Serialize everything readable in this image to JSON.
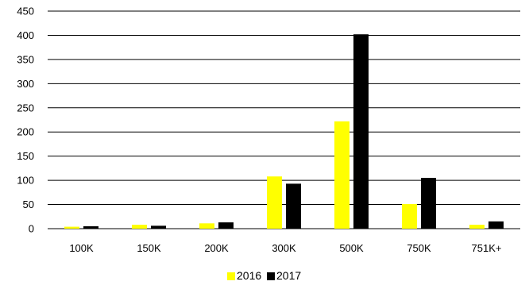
{
  "chart_data": {
    "type": "bar",
    "title": "",
    "xlabel": "",
    "ylabel": "",
    "categories": [
      "100K",
      "150K",
      "200K",
      "300K",
      "500K",
      "750K",
      "751K+"
    ],
    "series": [
      {
        "name": "2016",
        "color": "#FFFF00",
        "values": [
          4,
          8,
          11,
          108,
          222,
          51,
          8
        ]
      },
      {
        "name": "2017",
        "color": "#000000",
        "values": [
          5,
          6,
          13,
          93,
          402,
          105,
          15
        ]
      }
    ],
    "ylim": [
      0,
      450
    ],
    "yticks": [
      0,
      50,
      100,
      150,
      200,
      250,
      300,
      350,
      400,
      450
    ],
    "grid": true,
    "legend_position": "bottom"
  }
}
